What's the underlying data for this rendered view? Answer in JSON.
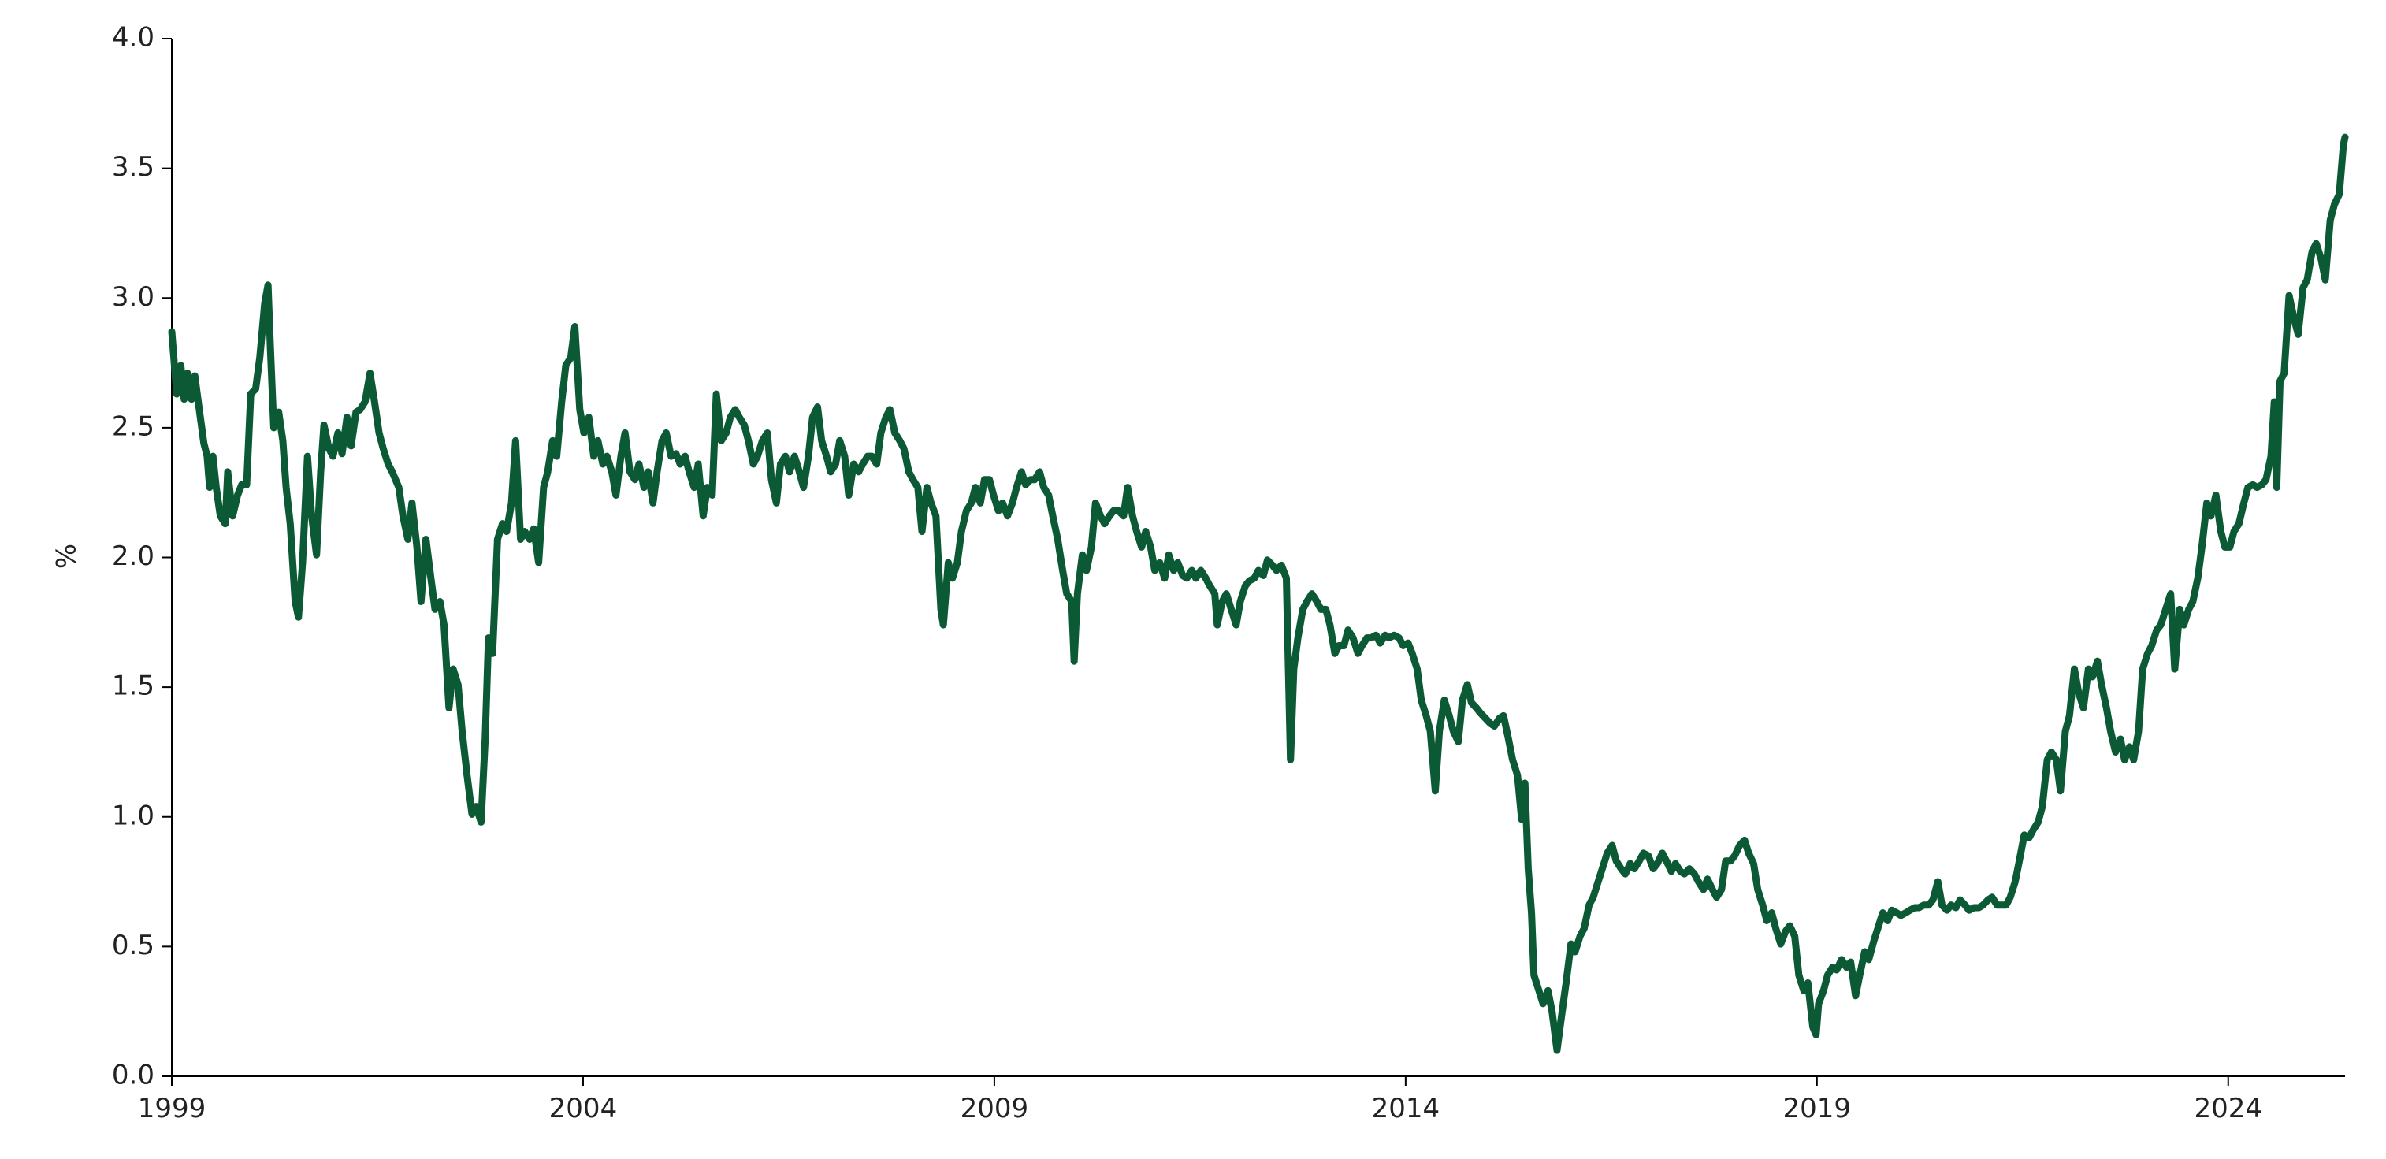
{
  "chart_data": {
    "type": "line",
    "y_label": "%",
    "color": "#0b5a35",
    "xlim": [
      1999,
      2025.42
    ],
    "xticks": [
      1999,
      2004,
      2009,
      2014,
      2019,
      2024
    ],
    "ylim": [
      0,
      4
    ],
    "yticks": [
      {
        "value": 0,
        "label": "0.0"
      },
      0.5,
      {
        "value": 1,
        "label": "1.0"
      },
      1.5,
      {
        "value": 2,
        "label": "2.0"
      },
      2.5,
      {
        "value": 3,
        "label": "3.0"
      },
      3.5,
      {
        "value": 4,
        "label": "4.0"
      }
    ],
    "x": [
      1999.0,
      1999.06,
      1999.11,
      1999.15,
      1999.19,
      1999.24,
      1999.28,
      1999.33,
      1999.39,
      1999.43,
      1999.46,
      1999.5,
      1999.54,
      1999.59,
      1999.65,
      1999.68,
      1999.74,
      1999.8,
      1999.85,
      1999.91,
      1999.96,
      2000.02,
      2000.07,
      2000.13,
      2000.17,
      2000.2,
      2000.24,
      2000.3,
      2000.35,
      2000.39,
      2000.44,
      2000.5,
      2000.54,
      2000.59,
      2000.65,
      2000.7,
      2000.76,
      2000.81,
      2000.85,
      2000.91,
      2000.96,
      2001.02,
      2001.07,
      2001.13,
      2001.18,
      2001.24,
      2001.29,
      2001.35,
      2001.41,
      2001.46,
      2001.52,
      2001.57,
      2001.63,
      2001.68,
      2001.76,
      2001.81,
      2001.87,
      2001.92,
      2001.98,
      2002.03,
      2002.09,
      2002.15,
      2002.2,
      2002.26,
      2002.31,
      2002.37,
      2002.42,
      2002.48,
      2002.53,
      2002.59,
      2002.65,
      2002.7,
      2002.76,
      2002.81,
      2002.85,
      2002.9,
      2002.96,
      2003.02,
      2003.07,
      2003.13,
      2003.18,
      2003.24,
      2003.29,
      2003.35,
      2003.4,
      2003.46,
      2003.52,
      2003.57,
      2003.63,
      2003.68,
      2003.74,
      2003.79,
      2003.85,
      2003.9,
      2003.96,
      2004.01,
      2004.07,
      2004.13,
      2004.18,
      2004.24,
      2004.29,
      2004.35,
      2004.4,
      2004.46,
      2004.51,
      2004.57,
      2004.63,
      2004.68,
      2004.74,
      2004.79,
      2004.85,
      2004.9,
      2004.96,
      2005.01,
      2005.07,
      2005.13,
      2005.18,
      2005.24,
      2005.29,
      2005.35,
      2005.4,
      2005.46,
      2005.51,
      2005.57,
      2005.62,
      2005.68,
      2005.74,
      2005.79,
      2005.85,
      2005.9,
      2005.96,
      2006.01,
      2006.07,
      2006.12,
      2006.18,
      2006.24,
      2006.29,
      2006.35,
      2006.4,
      2006.46,
      2006.51,
      2006.57,
      2006.62,
      2006.68,
      2006.74,
      2006.79,
      2006.85,
      2006.9,
      2006.96,
      2007.01,
      2007.07,
      2007.12,
      2007.18,
      2007.23,
      2007.29,
      2007.35,
      2007.4,
      2007.46,
      2007.51,
      2007.57,
      2007.62,
      2007.68,
      2007.73,
      2007.79,
      2007.85,
      2007.9,
      2007.96,
      2008.01,
      2008.07,
      2008.12,
      2008.18,
      2008.23,
      2008.29,
      2008.35,
      2008.38,
      2008.44,
      2008.49,
      2008.55,
      2008.6,
      2008.66,
      2008.72,
      2008.77,
      2008.83,
      2008.88,
      2008.94,
      2008.99,
      2009.05,
      2009.1,
      2009.16,
      2009.22,
      2009.27,
      2009.33,
      2009.38,
      2009.44,
      2009.49,
      2009.55,
      2009.6,
      2009.66,
      2009.71,
      2009.77,
      2009.83,
      2009.88,
      2009.94,
      2009.97,
      2010.01,
      2010.07,
      2010.12,
      2010.18,
      2010.23,
      2010.29,
      2010.34,
      2010.4,
      2010.45,
      2010.51,
      2010.57,
      2010.62,
      2010.68,
      2010.73,
      2010.79,
      2010.84,
      2010.9,
      2010.95,
      2011.01,
      2011.07,
      2011.12,
      2011.18,
      2011.23,
      2011.29,
      2011.34,
      2011.4,
      2011.45,
      2011.51,
      2011.57,
      2011.62,
      2011.68,
      2011.71,
      2011.77,
      2011.82,
      2011.88,
      2011.94,
      2011.99,
      2012.05,
      2012.1,
      2012.16,
      2012.21,
      2012.27,
      2012.32,
      2012.38,
      2012.43,
      2012.49,
      2012.55,
      2012.6,
      2012.64,
      2012.69,
      2012.75,
      2012.8,
      2012.86,
      2012.92,
      2012.97,
      2013.03,
      2013.08,
      2013.14,
      2013.19,
      2013.25,
      2013.3,
      2013.36,
      2013.42,
      2013.47,
      2013.53,
      2013.58,
      2013.64,
      2013.69,
      2013.75,
      2013.8,
      2013.86,
      2013.92,
      2013.97,
      2014.03,
      2014.08,
      2014.14,
      2014.19,
      2014.25,
      2014.3,
      2014.36,
      2014.41,
      2014.47,
      2014.53,
      2014.58,
      2014.64,
      2014.69,
      2014.75,
      2014.8,
      2014.86,
      2014.91,
      2014.97,
      2015.03,
      2015.08,
      2015.14,
      2015.19,
      2015.25,
      2015.3,
      2015.36,
      2015.41,
      2015.45,
      2015.49,
      2015.53,
      2015.56,
      2015.62,
      2015.67,
      2015.73,
      2015.78,
      2015.84,
      2015.89,
      2015.95,
      2016.01,
      2016.06,
      2016.12,
      2016.17,
      2016.23,
      2016.28,
      2016.34,
      2016.39,
      2016.45,
      2016.51,
      2016.56,
      2016.62,
      2016.67,
      2016.73,
      2016.78,
      2016.84,
      2016.89,
      2016.95,
      2017.01,
      2017.06,
      2017.12,
      2017.17,
      2017.23,
      2017.28,
      2017.34,
      2017.39,
      2017.45,
      2017.51,
      2017.56,
      2017.62,
      2017.67,
      2017.73,
      2017.78,
      2017.84,
      2017.89,
      2017.95,
      2018.0,
      2018.06,
      2018.12,
      2018.17,
      2018.23,
      2018.28,
      2018.34,
      2018.39,
      2018.45,
      2018.5,
      2018.56,
      2018.62,
      2018.67,
      2018.73,
      2018.78,
      2018.84,
      2018.89,
      2018.95,
      2018.99,
      2019.02,
      2019.08,
      2019.13,
      2019.19,
      2019.24,
      2019.3,
      2019.36,
      2019.41,
      2019.47,
      2019.52,
      2019.58,
      2019.63,
      2019.69,
      2019.74,
      2019.8,
      2019.86,
      2019.91,
      2019.97,
      2020.02,
      2020.08,
      2020.13,
      2020.19,
      2020.24,
      2020.3,
      2020.36,
      2020.41,
      2020.47,
      2020.52,
      2020.58,
      2020.63,
      2020.69,
      2020.74,
      2020.8,
      2020.85,
      2020.91,
      2020.97,
      2021.02,
      2021.08,
      2021.13,
      2021.19,
      2021.24,
      2021.3,
      2021.35,
      2021.41,
      2021.46,
      2021.52,
      2021.58,
      2021.63,
      2021.69,
      2021.74,
      2021.8,
      2021.85,
      2021.91,
      2021.96,
      2022.02,
      2022.07,
      2022.13,
      2022.18,
      2022.24,
      2022.3,
      2022.35,
      2022.41,
      2022.46,
      2022.52,
      2022.57,
      2022.63,
      2022.69,
      2022.74,
      2022.8,
      2022.85,
      2022.91,
      2022.96,
      2023.02,
      2023.07,
      2023.13,
      2023.18,
      2023.24,
      2023.3,
      2023.35,
      2023.41,
      2023.46,
      2023.52,
      2023.57,
      2023.63,
      2023.68,
      2023.74,
      2023.79,
      2023.85,
      2023.91,
      2023.96,
      2024.02,
      2024.07,
      2024.13,
      2024.19,
      2024.24,
      2024.3,
      2024.35,
      2024.41,
      2024.46,
      2024.52,
      2024.56,
      2024.59,
      2024.63,
      2024.68,
      2024.74,
      2024.8,
      2024.85,
      2024.91,
      2024.96,
      2025.02,
      2025.07,
      2025.13,
      2025.18,
      2025.24,
      2025.29,
      2025.35,
      2025.4,
      2025.42
    ],
    "values": [
      2.87,
      2.63,
      2.74,
      2.61,
      2.71,
      2.61,
      2.7,
      2.58,
      2.44,
      2.39,
      2.27,
      2.39,
      2.27,
      2.16,
      2.13,
      2.33,
      2.16,
      2.24,
      2.28,
      2.28,
      2.63,
      2.65,
      2.77,
      2.98,
      3.05,
      2.8,
      2.5,
      2.56,
      2.45,
      2.27,
      2.13,
      1.83,
      1.77,
      1.98,
      2.39,
      2.16,
      2.01,
      2.33,
      2.51,
      2.42,
      2.39,
      2.48,
      2.4,
      2.54,
      2.43,
      2.56,
      2.57,
      2.6,
      2.71,
      2.61,
      2.48,
      2.42,
      2.36,
      2.33,
      2.27,
      2.16,
      2.07,
      2.21,
      2.04,
      1.83,
      2.07,
      1.92,
      1.8,
      1.83,
      1.74,
      1.42,
      1.57,
      1.51,
      1.33,
      1.16,
      1.01,
      1.04,
      0.98,
      1.3,
      1.69,
      1.63,
      2.07,
      2.13,
      2.1,
      2.21,
      2.45,
      2.07,
      2.1,
      2.07,
      2.11,
      1.98,
      2.27,
      2.33,
      2.45,
      2.39,
      2.6,
      2.74,
      2.77,
      2.89,
      2.57,
      2.48,
      2.54,
      2.39,
      2.45,
      2.36,
      2.39,
      2.33,
      2.24,
      2.39,
      2.48,
      2.33,
      2.3,
      2.36,
      2.27,
      2.33,
      2.21,
      2.33,
      2.45,
      2.48,
      2.39,
      2.4,
      2.36,
      2.39,
      2.33,
      2.27,
      2.36,
      2.16,
      2.27,
      2.24,
      2.63,
      2.45,
      2.48,
      2.54,
      2.57,
      2.54,
      2.51,
      2.45,
      2.36,
      2.39,
      2.45,
      2.48,
      2.3,
      2.21,
      2.36,
      2.39,
      2.33,
      2.39,
      2.34,
      2.27,
      2.39,
      2.54,
      2.58,
      2.45,
      2.39,
      2.33,
      2.36,
      2.45,
      2.39,
      2.24,
      2.36,
      2.33,
      2.36,
      2.39,
      2.39,
      2.36,
      2.48,
      2.54,
      2.57,
      2.48,
      2.45,
      2.42,
      2.33,
      2.3,
      2.27,
      2.1,
      2.27,
      2.21,
      2.16,
      1.8,
      1.74,
      1.98,
      1.92,
      1.98,
      2.1,
      2.18,
      2.21,
      2.27,
      2.21,
      2.3,
      2.3,
      2.24,
      2.18,
      2.21,
      2.16,
      2.21,
      2.27,
      2.33,
      2.28,
      2.3,
      2.3,
      2.33,
      2.27,
      2.24,
      2.16,
      2.07,
      1.95,
      1.86,
      1.83,
      1.6,
      1.86,
      2.01,
      1.95,
      2.04,
      2.21,
      2.16,
      2.13,
      2.16,
      2.18,
      2.18,
      2.16,
      2.27,
      2.16,
      2.1,
      2.04,
      2.1,
      2.04,
      1.95,
      1.98,
      1.92,
      2.01,
      1.95,
      1.98,
      1.93,
      1.92,
      1.95,
      1.92,
      1.95,
      1.92,
      1.89,
      1.86,
      1.74,
      1.83,
      1.86,
      1.8,
      1.74,
      1.83,
      1.89,
      1.91,
      1.92,
      1.95,
      1.93,
      1.99,
      1.97,
      1.95,
      1.97,
      1.92,
      1.22,
      1.57,
      1.69,
      1.8,
      1.83,
      1.86,
      1.83,
      1.8,
      1.8,
      1.74,
      1.63,
      1.66,
      1.66,
      1.72,
      1.69,
      1.63,
      1.66,
      1.69,
      1.69,
      1.7,
      1.67,
      1.7,
      1.69,
      1.7,
      1.69,
      1.66,
      1.67,
      1.63,
      1.57,
      1.45,
      1.39,
      1.33,
      1.1,
      1.33,
      1.45,
      1.39,
      1.33,
      1.29,
      1.45,
      1.51,
      1.44,
      1.42,
      1.4,
      1.38,
      1.36,
      1.35,
      1.38,
      1.39,
      1.3,
      1.22,
      1.16,
      0.99,
      1.13,
      0.8,
      0.63,
      0.39,
      0.33,
      0.28,
      0.33,
      0.25,
      0.1,
      0.22,
      0.36,
      0.51,
      0.48,
      0.54,
      0.57,
      0.66,
      0.69,
      0.75,
      0.8,
      0.86,
      0.89,
      0.83,
      0.8,
      0.78,
      0.82,
      0.8,
      0.83,
      0.86,
      0.85,
      0.8,
      0.82,
      0.86,
      0.83,
      0.79,
      0.82,
      0.79,
      0.78,
      0.8,
      0.78,
      0.75,
      0.72,
      0.76,
      0.72,
      0.69,
      0.72,
      0.83,
      0.83,
      0.85,
      0.89,
      0.91,
      0.86,
      0.82,
      0.72,
      0.66,
      0.6,
      0.63,
      0.57,
      0.51,
      0.56,
      0.58,
      0.54,
      0.39,
      0.33,
      0.36,
      0.19,
      0.16,
      0.28,
      0.33,
      0.39,
      0.42,
      0.41,
      0.45,
      0.42,
      0.44,
      0.31,
      0.39,
      0.48,
      0.45,
      0.52,
      0.57,
      0.63,
      0.6,
      0.64,
      0.63,
      0.62,
      0.63,
      0.64,
      0.65,
      0.65,
      0.66,
      0.66,
      0.68,
      0.75,
      0.66,
      0.64,
      0.66,
      0.65,
      0.68,
      0.66,
      0.64,
      0.65,
      0.65,
      0.66,
      0.68,
      0.69,
      0.66,
      0.66,
      0.66,
      0.69,
      0.75,
      0.83,
      0.93,
      0.92,
      0.95,
      0.98,
      1.04,
      1.22,
      1.25,
      1.22,
      1.1,
      1.33,
      1.39,
      1.57,
      1.48,
      1.42,
      1.57,
      1.54,
      1.6,
      1.51,
      1.42,
      1.33,
      1.25,
      1.3,
      1.22,
      1.27,
      1.22,
      1.33,
      1.57,
      1.63,
      1.66,
      1.72,
      1.74,
      1.8,
      1.86,
      1.57,
      1.8,
      1.74,
      1.8,
      1.83,
      1.92,
      2.04,
      2.21,
      2.16,
      2.24,
      2.1,
      2.04,
      2.04,
      2.1,
      2.13,
      2.21,
      2.27,
      2.28,
      2.27,
      2.28,
      2.3,
      2.39,
      2.6,
      2.27,
      2.68,
      2.71,
      3.01,
      2.92,
      2.86,
      3.04,
      3.07,
      3.18,
      3.21,
      3.15,
      3.07,
      3.3,
      3.36,
      3.4,
      3.59,
      3.62
    ]
  }
}
